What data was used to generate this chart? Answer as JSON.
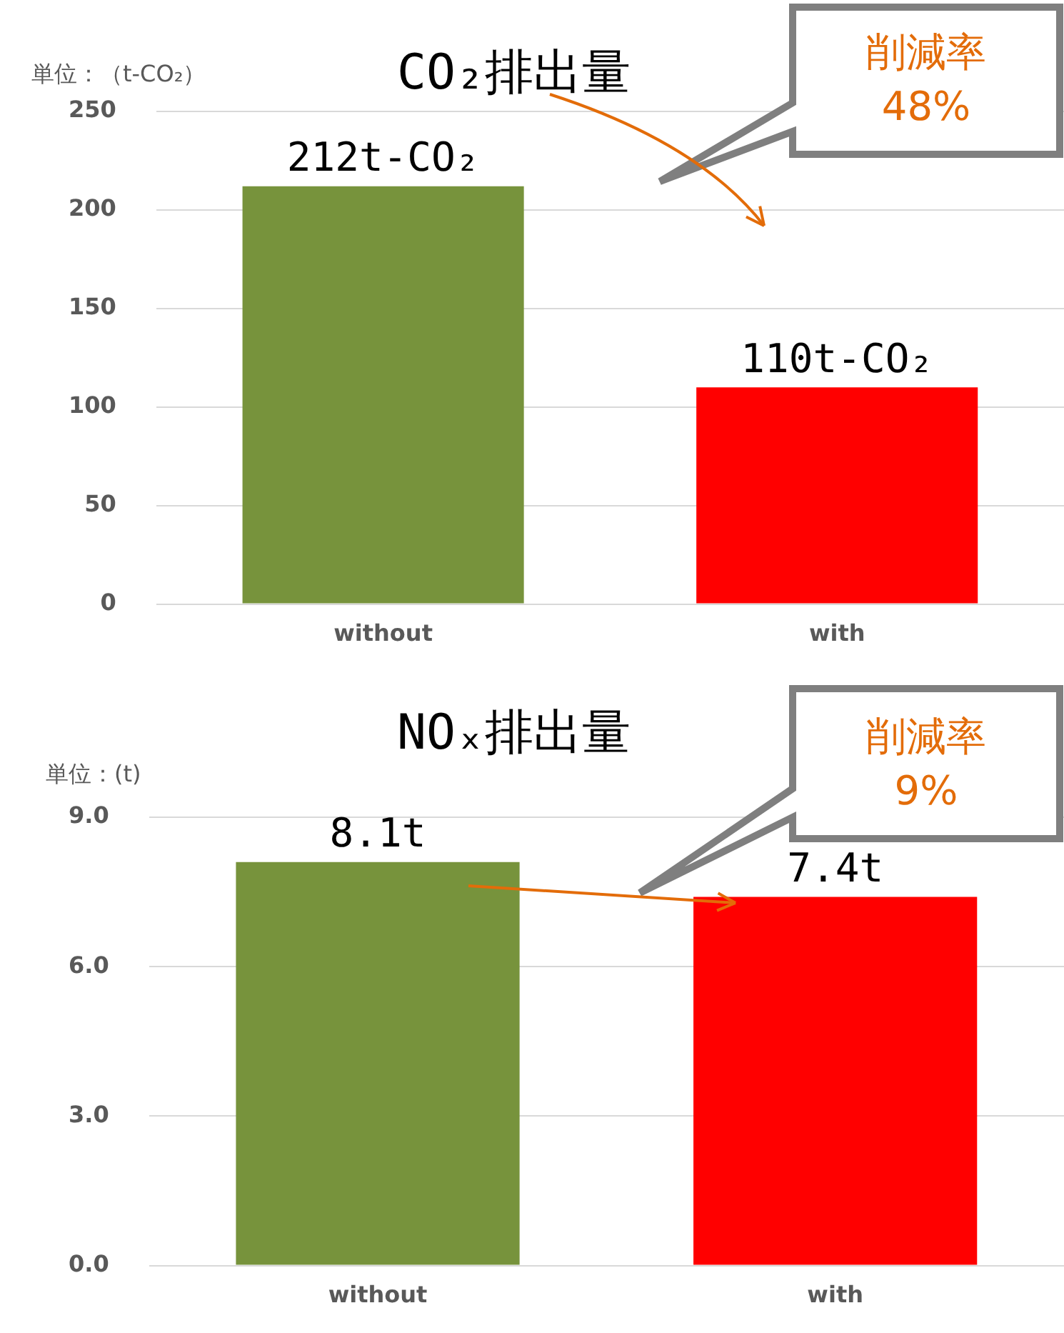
{
  "chart_data": [
    {
      "type": "bar",
      "title": "CO₂排出量",
      "ylabel": "単位：（t-CO₂）",
      "categories": [
        "without",
        "with"
      ],
      "values": [
        212,
        110
      ],
      "colors": [
        "#77933c",
        "#ff0000"
      ],
      "value_labels": [
        "212t-CO₂",
        "110t-CO₂"
      ],
      "ylim": [
        0,
        250
      ],
      "yticks": [
        0,
        50,
        100,
        150,
        200,
        250
      ],
      "grid": "y",
      "legend": false,
      "annotations": [
        "削減率\n48%"
      ]
    },
    {
      "type": "bar",
      "title": "NOₓ排出量",
      "ylabel": "単位：(t)",
      "categories": [
        "without",
        "with"
      ],
      "values": [
        8.1,
        7.4
      ],
      "colors": [
        "#77933c",
        "#ff0000"
      ],
      "value_labels": [
        "8.1t",
        "7.4t"
      ],
      "ylim": [
        0,
        9
      ],
      "yticks": [
        {
          "value": 0,
          "label": "0.0"
        },
        {
          "value": 3,
          "label": "3.0"
        },
        {
          "value": 6,
          "label": "6.0"
        },
        {
          "value": 9,
          "label": "9.0"
        }
      ],
      "grid": "y",
      "legend": false,
      "annotations": [
        "削減率\n9%"
      ]
    }
  ]
}
